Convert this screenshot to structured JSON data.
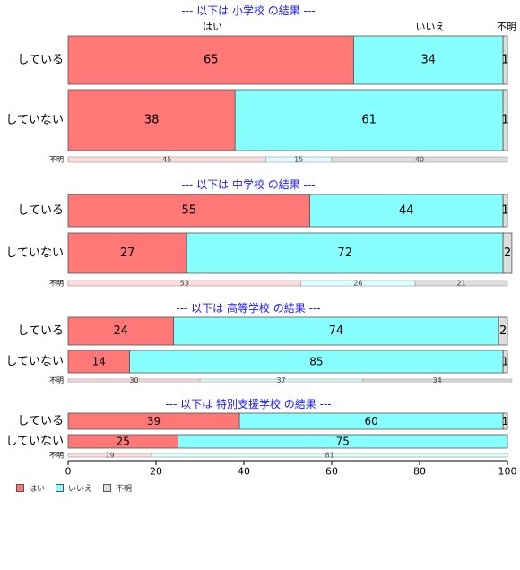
{
  "colors": {
    "yes": "#ff7777",
    "no": "#88ffff",
    "unknown": "#dddddd",
    "title": "#1a1aff",
    "bar_border": "#555555"
  },
  "top_labels": {
    "yes": "はい",
    "no": "いいえ",
    "unknown": "不明"
  },
  "legend": {
    "yes": "はい",
    "no": "いいえ",
    "unknown": "不明"
  },
  "chart_data": {
    "type": "bar",
    "orientation": "horizontal",
    "stacked": true,
    "xlim": [
      0,
      100
    ],
    "xticks": [
      0,
      20,
      40,
      60,
      80,
      100
    ],
    "series_names": [
      "はい",
      "いいえ",
      "不明"
    ],
    "groups": [
      {
        "title": "--- 以下は 小学校 の結果 ---",
        "rows": [
          {
            "label": "している",
            "values": [
              65,
              34,
              1
            ]
          },
          {
            "label": "していない",
            "values": [
              38,
              61,
              1
            ]
          }
        ],
        "unknown_row": {
          "label": "不明",
          "values": [
            45,
            15,
            40
          ]
        }
      },
      {
        "title": "--- 以下は 中学校 の結果 ---",
        "rows": [
          {
            "label": "している",
            "values": [
              55,
              44,
              1
            ]
          },
          {
            "label": "していない",
            "values": [
              27,
              72,
              2
            ]
          }
        ],
        "unknown_row": {
          "label": "不明",
          "values": [
            53,
            26,
            21
          ]
        }
      },
      {
        "title": "--- 以下は 高等学校 の結果 ---",
        "rows": [
          {
            "label": "している",
            "values": [
              24,
              74,
              2
            ]
          },
          {
            "label": "していない",
            "values": [
              14,
              85,
              1
            ]
          }
        ],
        "unknown_row": {
          "label": "不明",
          "values": [
            30,
            37,
            34
          ]
        }
      },
      {
        "title": "--- 以下は 特別支援学校 の結果 ---",
        "rows": [
          {
            "label": "している",
            "values": [
              39,
              60,
              1
            ]
          },
          {
            "label": "していない",
            "values": [
              25,
              75,
              0
            ]
          }
        ],
        "unknown_row": {
          "label": "不明",
          "values": [
            19,
            81,
            0
          ]
        }
      }
    ]
  }
}
